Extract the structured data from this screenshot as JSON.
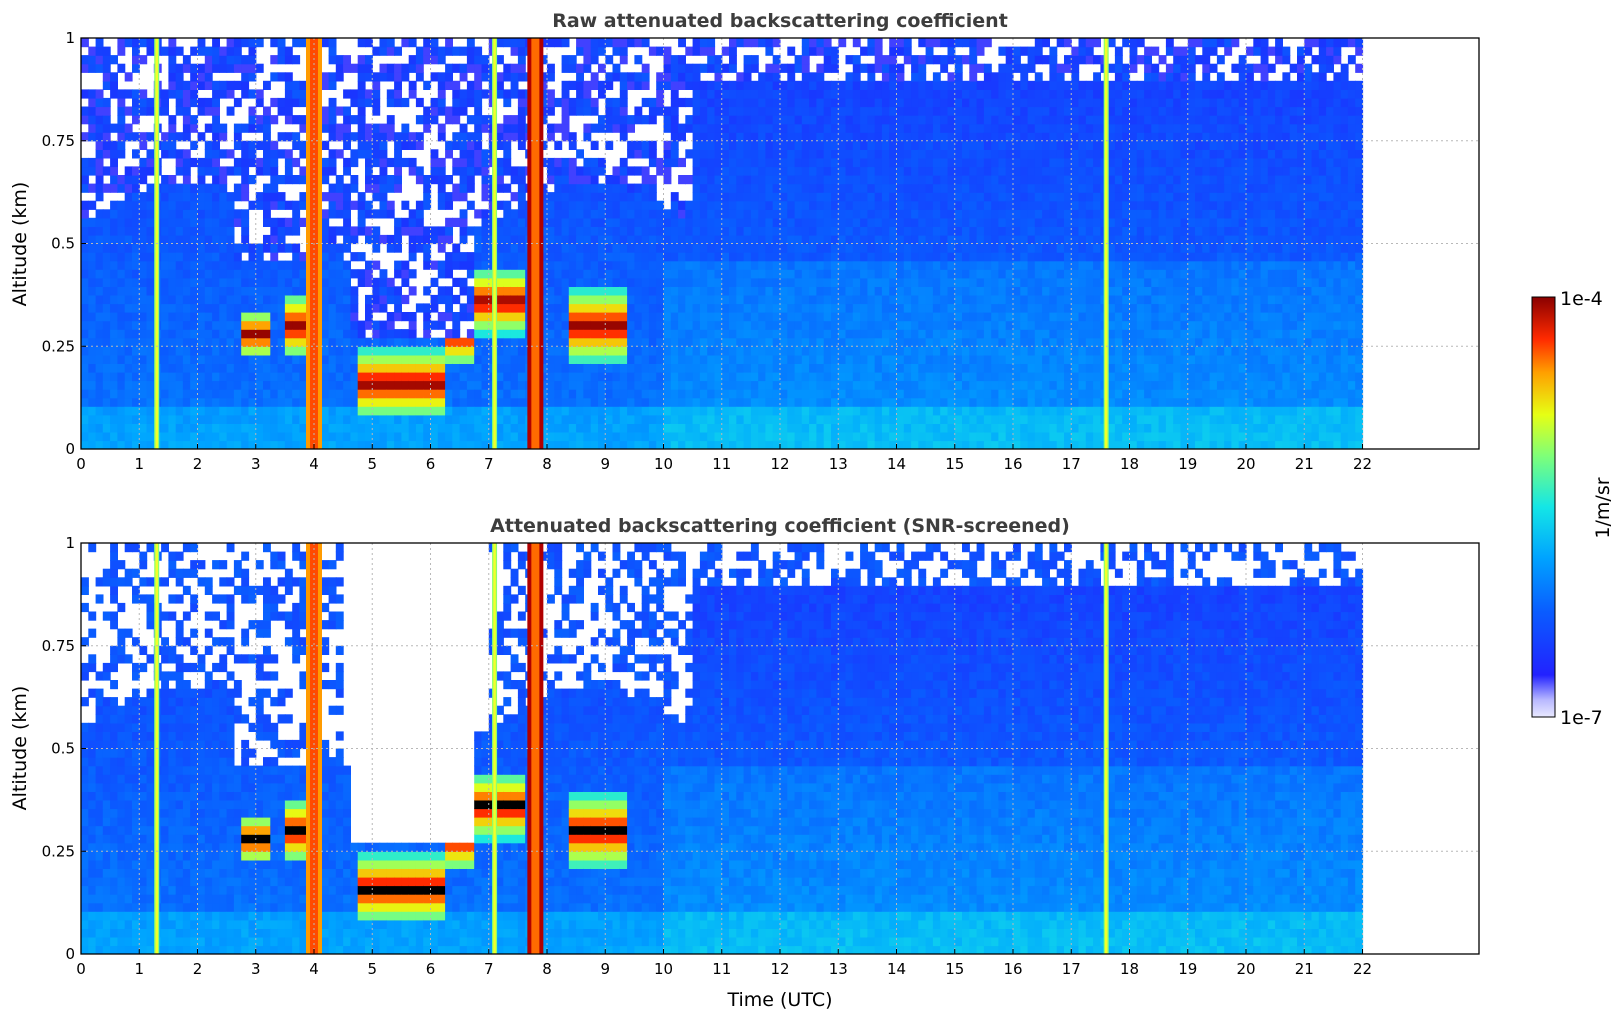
{
  "chart_data": [
    {
      "type": "heatmap",
      "title": "Raw attenuated backscattering coefficient",
      "xlabel": "",
      "ylabel": "Altitude (km)",
      "xlim": [
        0,
        24
      ],
      "ylim": [
        0,
        1
      ],
      "x_ticks": [
        "0",
        "1",
        "2",
        "3",
        "4",
        "5",
        "6",
        "7",
        "8",
        "9",
        "10",
        "11",
        "12",
        "13",
        "14",
        "15",
        "16",
        "17",
        "18",
        "19",
        "20",
        "21",
        "22"
      ],
      "y_ticks": [
        "0",
        "0.25",
        "0.5",
        "0.75",
        "1"
      ],
      "grid": true,
      "data_extent_hours": [
        0,
        22
      ],
      "color_scale": "log",
      "vertical_streaks": [
        {
          "time": 1.3,
          "kind": "green"
        },
        {
          "time": 4.0,
          "kind": "orange"
        },
        {
          "time": 7.1,
          "kind": "green"
        },
        {
          "time": 7.8,
          "kind": "darkred"
        },
        {
          "time": 17.6,
          "kind": "green"
        }
      ],
      "layers": [
        {
          "t0": 2.7,
          "t1": 3.3,
          "alt": 0.28,
          "thick": 0.06
        },
        {
          "t0": 3.5,
          "t1": 3.85,
          "alt": 0.3,
          "thick": 0.1
        },
        {
          "t0": 4.7,
          "t1": 6.3,
          "alt": 0.16,
          "thick": 0.11
        },
        {
          "t0": 6.2,
          "t1": 6.8,
          "alt": 0.28,
          "thick": 0.1
        },
        {
          "t0": 6.8,
          "t1": 7.6,
          "alt": 0.36,
          "thick": 0.1
        },
        {
          "t0": 8.4,
          "t1": 9.4,
          "alt": 0.3,
          "thick": 0.12
        }
      ]
    },
    {
      "type": "heatmap",
      "title": "Attenuated backscattering coefficient (SNR-screened)",
      "xlabel": "Time (UTC)",
      "ylabel": "Altitude (km)",
      "xlim": [
        0,
        24
      ],
      "ylim": [
        0,
        1
      ],
      "x_ticks": [
        "0",
        "1",
        "2",
        "3",
        "4",
        "5",
        "6",
        "7",
        "8",
        "9",
        "10",
        "11",
        "12",
        "13",
        "14",
        "15",
        "16",
        "17",
        "18",
        "19",
        "20",
        "21",
        "22"
      ],
      "y_ticks": [
        "0",
        "0.25",
        "0.5",
        "0.75",
        "1"
      ],
      "grid": true,
      "data_extent_hours": [
        0,
        22
      ],
      "color_scale": "log",
      "saturated_color": "#000000"
    }
  ],
  "colorbar": {
    "label": "1/m/sr",
    "max_label": "1e-4",
    "min_label": "1e-7",
    "min": 1e-07,
    "max": 0.0001,
    "colormap": "jet"
  },
  "colors": {
    "saturation": "#000000",
    "title": "#3d3d3d"
  }
}
